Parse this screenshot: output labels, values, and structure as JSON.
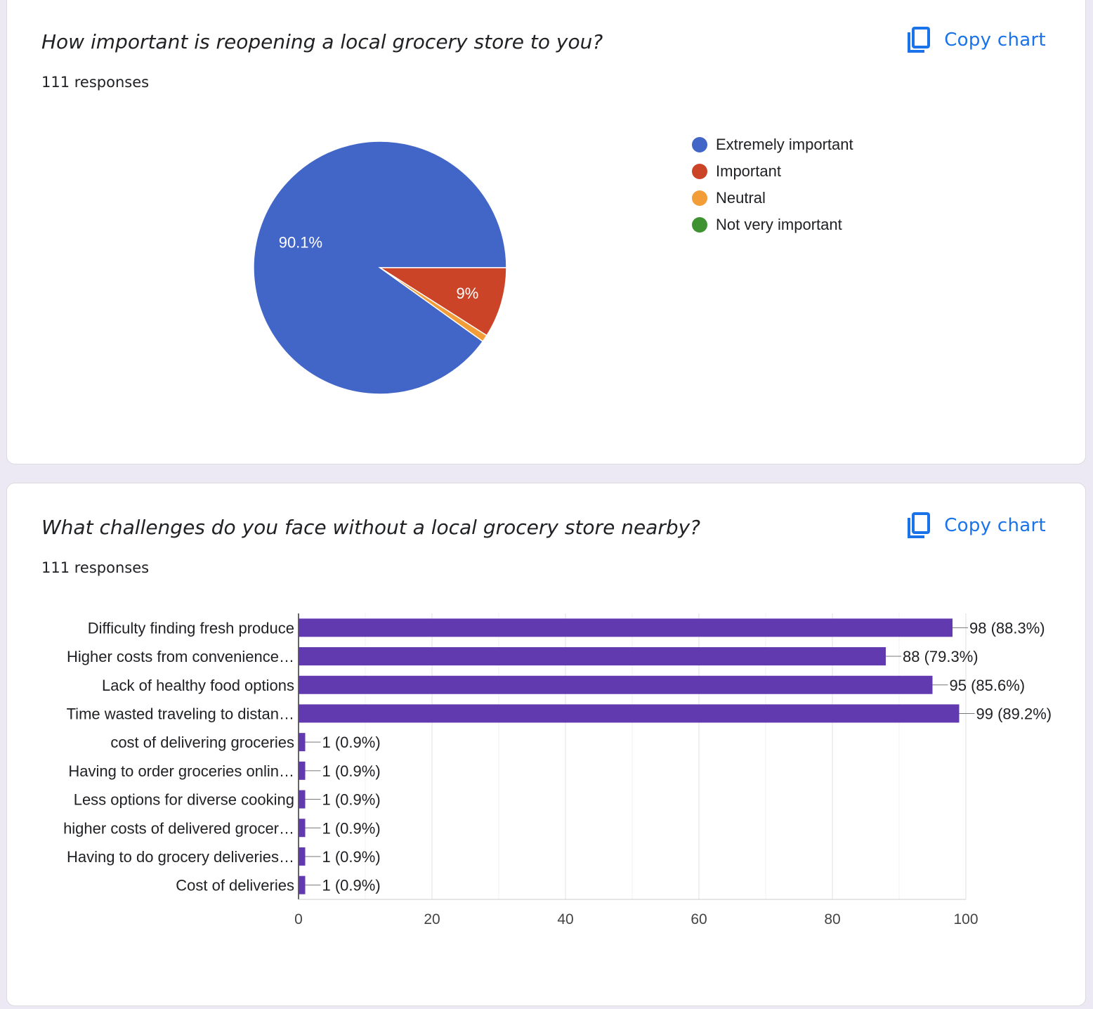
{
  "cards": [
    {
      "question": "How important is reopening a local grocery store to you?",
      "responses": "111 responses",
      "copy_label": "Copy chart"
    },
    {
      "question": "What challenges do you face without a local grocery store nearby?",
      "responses": "111 responses",
      "copy_label": "Copy chart"
    }
  ],
  "chart_data": [
    {
      "type": "pie",
      "title": "How important is reopening a local grocery store to you?",
      "legend_position": "right",
      "slices": [
        {
          "label": "Extremely important",
          "percent": 90.1,
          "color": "#4166c7",
          "data_label": "90.1%"
        },
        {
          "label": "Important",
          "percent": 9.0,
          "color": "#cc4428",
          "data_label": "9%"
        },
        {
          "label": "Neutral",
          "percent": 0.9,
          "color": "#f29d37",
          "data_label": ""
        },
        {
          "label": "Not very important",
          "percent": 0,
          "color": "#3f9230",
          "data_label": ""
        }
      ]
    },
    {
      "type": "bar",
      "orientation": "horizontal",
      "title": "What challenges do you face without a local grocery store nearby?",
      "bar_color": "#623ab0",
      "categories": [
        "Difficulty finding fresh produce",
        "Higher costs from convenience…",
        "Lack of healthy food options",
        "Time wasted traveling to distan…",
        "cost of delivering groceries",
        "Having to order groceries onlin…",
        "Less options for diverse cooking",
        "higher costs of delivered grocer…",
        "Having to do grocery deliveries…",
        "Cost of deliveries"
      ],
      "values": [
        98,
        88,
        95,
        99,
        1,
        1,
        1,
        1,
        1,
        1
      ],
      "data_labels": [
        "98 (88.3%)",
        "88 (79.3%)",
        "95 (85.6%)",
        "99 (89.2%)",
        "1 (0.9%)",
        "1 (0.9%)",
        "1 (0.9%)",
        "1 (0.9%)",
        "1 (0.9%)",
        "1 (0.9%)"
      ],
      "xlim": [
        0,
        100
      ],
      "x_ticks": [
        0,
        20,
        40,
        60,
        80,
        100
      ],
      "grid": true
    }
  ]
}
